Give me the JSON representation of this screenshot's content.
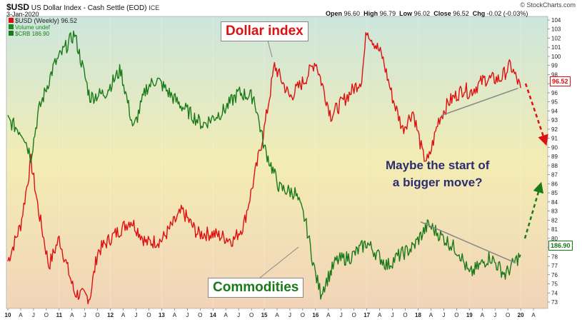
{
  "header": {
    "ticker": "$USD",
    "name": "US Dollar Index - Cash Settle (EOD)",
    "exchange": "ICE",
    "date": "3-Jan-2020",
    "source": "© StockCharts.com",
    "ohlc": {
      "open_label": "Open",
      "open": "96.60",
      "high_label": "High",
      "high": "96.79",
      "low_label": "Low",
      "low": "96.02",
      "close_label": "Close",
      "close": "96.52",
      "chg_label": "Chg",
      "chg": "-0.02 (-0.03%)"
    }
  },
  "legend": [
    {
      "label": "$USD (Weekly) 96.52",
      "color": "#dd1111"
    },
    {
      "label": "Volume undef",
      "color": "#1a8a1a"
    },
    {
      "label": "$CRB 186.90",
      "color": "#1a7a1a"
    }
  ],
  "annotations": {
    "dollar_index": "Dollar index",
    "commodities": "Commodities",
    "question_line1": "Maybe the start of",
    "question_line2": "a bigger move?"
  },
  "badges": {
    "usd_last": "96.52",
    "crb_last": "186.90"
  },
  "colors": {
    "usd": "#dd1111",
    "crb": "#1a7a1a",
    "callout_usd_text": "#dd1111",
    "callout_crb_text": "#1a7a1a",
    "question_text": "#2b2d6e",
    "bg_top": "#cce6dc",
    "bg_mid": "#f3ecb4",
    "bg_bottom": "#f2d4b8"
  },
  "chart_data": {
    "type": "line",
    "ylim": [
      73,
      104
    ],
    "y_ticks": [
      73,
      74,
      75,
      76,
      77,
      78,
      79,
      80,
      81,
      82,
      83,
      84,
      85,
      86,
      87,
      88,
      89,
      90,
      91,
      92,
      93,
      94,
      95,
      96,
      97,
      98,
      99,
      100,
      101,
      102,
      103,
      104
    ],
    "x_ticks": [
      "10",
      "A",
      "J",
      "O",
      "11",
      "A",
      "J",
      "O",
      "12",
      "A",
      "J",
      "O",
      "13",
      "A",
      "J",
      "O",
      "14",
      "A",
      "J",
      "O",
      "15",
      "A",
      "J",
      "O",
      "16",
      "A",
      "J",
      "O",
      "17",
      "A",
      "J",
      "O",
      "18",
      "A",
      "J",
      "O",
      "19",
      "A",
      "J",
      "O",
      "20",
      "A"
    ],
    "series": [
      {
        "name": "$USD (Weekly)",
        "color": "#dd1111",
        "last": 96.52,
        "x": [
          2010.0,
          2010.25,
          2010.45,
          2010.6,
          2010.8,
          2011.0,
          2011.3,
          2011.6,
          2011.75,
          2012.0,
          2012.4,
          2012.7,
          2013.0,
          2013.4,
          2013.7,
          2014.0,
          2014.4,
          2014.6,
          2014.8,
          2015.0,
          2015.2,
          2015.5,
          2015.8,
          2016.0,
          2016.3,
          2016.6,
          2016.9,
          2017.0,
          2017.3,
          2017.5,
          2017.7,
          2017.9,
          2018.1,
          2018.2,
          2018.4,
          2018.6,
          2018.9,
          2019.0,
          2019.3,
          2019.6,
          2019.8,
          2020.0
        ],
        "y": [
          77.5,
          81.5,
          88.5,
          83.0,
          77.0,
          80.0,
          74.0,
          73.5,
          78.5,
          80.0,
          82.0,
          79.5,
          79.8,
          83.0,
          80.5,
          80.5,
          79.8,
          81.5,
          86.5,
          92.0,
          99.0,
          95.5,
          97.5,
          99.5,
          93.5,
          95.5,
          97.5,
          103.0,
          100.0,
          95.5,
          92.0,
          94.0,
          89.0,
          88.5,
          93.0,
          95.0,
          96.5,
          96.0,
          97.5,
          97.5,
          99.0,
          96.52
        ]
      },
      {
        "name": "$CRB",
        "color": "#1a7a1a",
        "last": 186.9,
        "x": [
          2010.0,
          2010.3,
          2010.45,
          2010.6,
          2010.9,
          2011.3,
          2011.45,
          2011.6,
          2011.9,
          2012.2,
          2012.45,
          2012.7,
          2012.9,
          2013.3,
          2013.6,
          2013.8,
          2014.2,
          2014.5,
          2014.8,
          2015.0,
          2015.3,
          2015.6,
          2015.8,
          2016.0,
          2016.1,
          2016.4,
          2016.7,
          2017.0,
          2017.4,
          2017.6,
          2017.9,
          2018.2,
          2018.4,
          2018.8,
          2019.0,
          2019.4,
          2019.7,
          2019.9,
          2020.0
        ],
        "y": [
          93.0,
          91.5,
          89.0,
          94.0,
          99.0,
          102.5,
          99.0,
          95.5,
          96.0,
          98.5,
          92.0,
          96.5,
          97.5,
          95.0,
          93.5,
          92.5,
          94.0,
          96.0,
          95.5,
          90.0,
          85.5,
          85.0,
          82.0,
          76.0,
          74.0,
          77.5,
          78.0,
          79.5,
          77.0,
          78.0,
          79.0,
          81.5,
          80.5,
          78.5,
          76.0,
          78.0,
          76.0,
          77.5,
          78.2
        ]
      }
    ],
    "trendlines": [
      {
        "x": [
          2018.45,
          2019.95
        ],
        "y": [
          93.5,
          96.5
        ],
        "color": "#888888"
      },
      {
        "x": [
          2018.05,
          2019.9
        ],
        "y": [
          81.8,
          77.3
        ],
        "color": "#888888"
      }
    ]
  }
}
